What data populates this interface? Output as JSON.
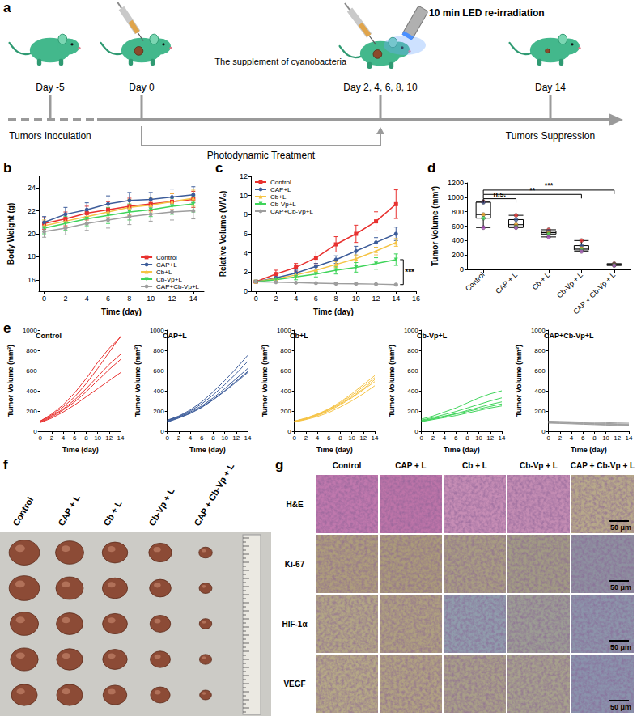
{
  "panel_a": {
    "label": "a",
    "events": [
      {
        "day": "Day -5",
        "caption": "Tumors Inoculation"
      },
      {
        "day": "Day 0"
      },
      {
        "day": "Day 2, 4, 6, 8, 10",
        "note": "The supplement of cyanobacteria",
        "irradiation": "10 min LED re-irradiation"
      },
      {
        "day": "Day 14",
        "caption": "Tumors Suppression"
      }
    ],
    "span": "Photodynamic Treatment"
  },
  "chart_data": [
    {
      "panel": "b",
      "type": "line",
      "x_label": "Time (day)",
      "y_label": "Body Weight (g)",
      "x": [
        0,
        2,
        4,
        6,
        8,
        10,
        12,
        14
      ],
      "xlim": [
        -0.5,
        15
      ],
      "xticks": [
        0,
        2,
        4,
        6,
        8,
        10,
        12,
        14
      ],
      "ylim": [
        15,
        25
      ],
      "yticks": [
        16,
        18,
        20,
        22,
        24
      ],
      "grid": false,
      "legend": "lower right",
      "series": [
        {
          "name": "Control",
          "color": "#e8312f",
          "marker": "square",
          "values": [
            20.9,
            21.3,
            21.8,
            22.1,
            22.4,
            22.6,
            22.8,
            23.0
          ],
          "errors": [
            0.5,
            0.6,
            0.6,
            0.7,
            0.7,
            0.6,
            0.7,
            0.7
          ]
        },
        {
          "name": "CAP+L",
          "color": "#3c5c9a",
          "marker": "circle",
          "values": [
            21.0,
            21.7,
            22.1,
            22.6,
            22.9,
            23.0,
            23.2,
            23.4
          ],
          "errors": [
            0.5,
            0.6,
            0.6,
            0.7,
            0.7,
            0.6,
            0.7,
            0.7
          ]
        },
        {
          "name": "Cb+L",
          "color": "#f5c344",
          "marker": "triangle-up",
          "values": [
            20.7,
            21.1,
            21.5,
            21.9,
            22.3,
            22.5,
            22.8,
            23.1
          ],
          "errors": [
            0.5,
            0.6,
            0.6,
            0.7,
            0.7,
            0.6,
            0.7,
            0.7
          ]
        },
        {
          "name": "Cb-Vp+L",
          "color": "#3fd45a",
          "marker": "triangle-down",
          "values": [
            20.5,
            20.9,
            21.3,
            21.6,
            21.9,
            22.1,
            22.4,
            22.6
          ],
          "errors": [
            0.5,
            0.6,
            0.6,
            0.7,
            0.7,
            0.6,
            0.7,
            0.7
          ]
        },
        {
          "name": "CAP+Cb-Vp+L",
          "color": "#9e9e9e",
          "marker": "circle",
          "values": [
            20.2,
            20.5,
            20.9,
            21.2,
            21.5,
            21.7,
            21.9,
            22.0
          ],
          "errors": [
            0.5,
            0.6,
            0.6,
            0.7,
            0.7,
            0.6,
            0.7,
            0.7
          ]
        }
      ]
    },
    {
      "panel": "c",
      "type": "line",
      "x_label": "Time (day)",
      "y_label": "Relative Volume (V/V₀)",
      "x": [
        0,
        2,
        4,
        6,
        8,
        10,
        12,
        14
      ],
      "xlim": [
        -0.5,
        16
      ],
      "xticks": [
        0,
        2,
        4,
        6,
        8,
        10,
        12,
        14,
        16
      ],
      "ylim": [
        0,
        12
      ],
      "yticks": [
        0,
        2,
        4,
        6,
        8,
        10,
        12
      ],
      "grid": false,
      "legend": "upper left",
      "annotations": [
        {
          "text": "***",
          "x": 14,
          "y_from": 0.7,
          "y_to": 3.3
        }
      ],
      "series": [
        {
          "name": "Control",
          "color": "#e8312f",
          "marker": "square",
          "values": [
            1,
            1.8,
            2.5,
            3.5,
            4.9,
            6.0,
            7.3,
            9.1
          ],
          "errors": [
            0.1,
            0.4,
            0.4,
            0.6,
            0.8,
            0.9,
            1.0,
            1.5
          ]
        },
        {
          "name": "CAP+L",
          "color": "#3c5c9a",
          "marker": "circle",
          "values": [
            1,
            1.4,
            1.9,
            2.6,
            3.3,
            4.2,
            5.1,
            6.0
          ],
          "errors": [
            0.1,
            0.2,
            0.3,
            0.3,
            0.4,
            0.5,
            0.5,
            0.7
          ]
        },
        {
          "name": "Cb+L",
          "color": "#f5c344",
          "marker": "triangle-up",
          "values": [
            1,
            1.3,
            1.7,
            2.2,
            2.8,
            3.4,
            4.2,
            5.1
          ],
          "errors": [
            0.1,
            0.2,
            0.2,
            0.3,
            0.3,
            0.4,
            0.4,
            0.4
          ]
        },
        {
          "name": "Cb-Vp+L",
          "color": "#3fd45a",
          "marker": "triangle-down",
          "values": [
            1,
            1.2,
            1.5,
            1.8,
            2.2,
            2.5,
            2.9,
            3.3
          ],
          "errors": [
            0.1,
            0.2,
            0.3,
            0.3,
            0.4,
            0.5,
            0.6,
            0.6
          ]
        },
        {
          "name": "CAP+Cb-Vp+L",
          "color": "#9e9e9e",
          "marker": "circle",
          "values": [
            1,
            0.95,
            0.9,
            0.85,
            0.8,
            0.78,
            0.75,
            0.7
          ],
          "errors": [
            0.05,
            0.05,
            0.05,
            0.05,
            0.05,
            0.05,
            0.05,
            0.05
          ]
        }
      ]
    },
    {
      "panel": "d",
      "type": "box",
      "y_label": "Tumor Volume (mm³)",
      "categories": [
        "Control",
        "CAP + L",
        "Cb + L",
        "Cb-Vp + L",
        "CAP + Cb-Vp + L"
      ],
      "ylim": [
        0,
        1200
      ],
      "yticks": [
        0,
        200,
        400,
        600,
        800,
        1000,
        1200
      ],
      "grid": false,
      "marker": "circle",
      "boxes": [
        [
          580,
          710,
          760,
          930,
          940
        ],
        [
          580,
          590,
          620,
          690,
          750
        ],
        [
          450,
          490,
          510,
          530,
          550
        ],
        [
          250,
          270,
          290,
          330,
          400
        ],
        [
          55,
          60,
          65,
          70,
          80
        ]
      ],
      "points": [
        [
          940,
          930,
          760,
          710,
          580
        ],
        [
          750,
          690,
          620,
          590,
          580
        ],
        [
          550,
          530,
          510,
          490,
          450
        ],
        [
          400,
          330,
          290,
          270,
          250
        ],
        [
          80,
          70,
          65,
          60,
          55
        ]
      ],
      "point_colors": [
        "#e8312f",
        "#3c5c9a",
        "#f5a623",
        "#3fd45a",
        "#b04fc0"
      ],
      "brackets": [
        {
          "from": "Control",
          "to": "CAP + L",
          "y": 980,
          "label": "n.s."
        },
        {
          "from": "Control",
          "to": "Cb-Vp + L",
          "y": 1040,
          "label": "**"
        },
        {
          "from": "Control",
          "to": "CAP + Cb-Vp + L",
          "y": 1100,
          "label": "***"
        }
      ]
    },
    {
      "panel": "e",
      "type": "line",
      "title": "Control",
      "color": "#e8312f",
      "marker": "none",
      "x_label": "Time (day)",
      "y_label": "Tumor Volume (mm³)",
      "x": [
        0,
        2,
        4,
        6,
        8,
        10,
        12,
        14
      ],
      "xlim": [
        0,
        14
      ],
      "xticks": [
        0,
        2,
        4,
        6,
        8,
        10,
        12,
        14
      ],
      "ylim": [
        0,
        1000
      ],
      "yticks": [
        0,
        200,
        400,
        600,
        800,
        1000
      ],
      "grid": false,
      "series": [
        {
          "values": [
            100,
            160,
            240,
            340,
            470,
            620,
            780,
            940
          ]
        },
        {
          "values": [
            100,
            170,
            260,
            380,
            520,
            680,
            820,
            930
          ]
        },
        {
          "values": [
            95,
            150,
            220,
            310,
            420,
            540,
            660,
            760
          ]
        },
        {
          "values": [
            90,
            140,
            210,
            290,
            390,
            500,
            610,
            710
          ]
        },
        {
          "values": [
            85,
            130,
            190,
            260,
            340,
            420,
            500,
            580
          ]
        }
      ]
    },
    {
      "type": "line",
      "title": "CAP+L",
      "color": "#3c5c9a",
      "marker": "none",
      "x_label": "Time (day)",
      "y_label": "Tumor Volume (mm³)",
      "x": [
        0,
        2,
        4,
        6,
        8,
        10,
        12,
        14
      ],
      "xlim": [
        0,
        14
      ],
      "xticks": [
        0,
        2,
        4,
        6,
        8,
        10,
        12,
        14
      ],
      "ylim": [
        0,
        1000
      ],
      "yticks": [
        0,
        200,
        400,
        600,
        800,
        1000
      ],
      "grid": false,
      "series": [
        {
          "values": [
            110,
            150,
            210,
            290,
            390,
            500,
            620,
            750
          ]
        },
        {
          "values": [
            105,
            145,
            200,
            270,
            360,
            460,
            570,
            690
          ]
        },
        {
          "values": [
            100,
            140,
            190,
            250,
            330,
            420,
            520,
            620
          ]
        },
        {
          "values": [
            95,
            135,
            180,
            240,
            315,
            400,
            495,
            590
          ]
        },
        {
          "values": [
            90,
            130,
            175,
            235,
            310,
            395,
            485,
            580
          ]
        }
      ]
    },
    {
      "type": "line",
      "title": "Cb+L",
      "color": "#f5c344",
      "marker": "none",
      "x_label": "Time (day)",
      "y_label": "Tumor Volume (mm³)",
      "x": [
        0,
        2,
        4,
        6,
        8,
        10,
        12,
        14
      ],
      "xlim": [
        0,
        14
      ],
      "xticks": [
        0,
        2,
        4,
        6,
        8,
        10,
        12,
        14
      ],
      "ylim": [
        0,
        1000
      ],
      "yticks": [
        0,
        200,
        400,
        600,
        800,
        1000
      ],
      "grid": false,
      "series": [
        {
          "values": [
            100,
            130,
            170,
            220,
            290,
            370,
            460,
            550
          ]
        },
        {
          "values": [
            100,
            125,
            165,
            215,
            280,
            355,
            440,
            530
          ]
        },
        {
          "values": [
            95,
            120,
            160,
            210,
            270,
            340,
            420,
            510
          ]
        },
        {
          "values": [
            95,
            120,
            155,
            200,
            260,
            330,
            410,
            490
          ]
        },
        {
          "values": [
            90,
            115,
            145,
            185,
            240,
            300,
            370,
            450
          ]
        }
      ]
    },
    {
      "type": "line",
      "title": "Cb-Vp+L",
      "color": "#3fd45a",
      "marker": "none",
      "x_label": "Time (day)",
      "y_label": "Tumor Volume (mm³)",
      "x": [
        0,
        2,
        4,
        6,
        8,
        10,
        12,
        14
      ],
      "xlim": [
        0,
        14
      ],
      "xticks": [
        0,
        2,
        4,
        6,
        8,
        10,
        12,
        14
      ],
      "ylim": [
        0,
        1000
      ],
      "yticks": [
        0,
        200,
        400,
        600,
        800,
        1000
      ],
      "grid": false,
      "series": [
        {
          "values": [
            120,
            150,
            190,
            230,
            280,
            330,
            370,
            400
          ]
        },
        {
          "values": [
            110,
            135,
            165,
            195,
            230,
            265,
            300,
            330
          ]
        },
        {
          "values": [
            105,
            125,
            150,
            175,
            205,
            235,
            265,
            290
          ]
        },
        {
          "values": [
            100,
            120,
            145,
            170,
            195,
            220,
            245,
            270
          ]
        },
        {
          "values": [
            95,
            115,
            135,
            155,
            180,
            205,
            230,
            250
          ]
        }
      ]
    },
    {
      "type": "line",
      "title": "CAP+Cb-Vp+L",
      "color": "#9e9e9e",
      "marker": "none",
      "x_label": "Time (day)",
      "y_label": "Tumor Volume (mm³)",
      "x": [
        0,
        2,
        4,
        6,
        8,
        10,
        12,
        14
      ],
      "xlim": [
        0,
        14
      ],
      "xticks": [
        0,
        2,
        4,
        6,
        8,
        10,
        12,
        14
      ],
      "ylim": [
        0,
        1000
      ],
      "yticks": [
        0,
        200,
        400,
        600,
        800,
        1000
      ],
      "grid": false,
      "series": [
        {
          "values": [
            100,
            97,
            94,
            91,
            88,
            85,
            82,
            80
          ]
        },
        {
          "values": [
            95,
            92,
            88,
            84,
            80,
            77,
            73,
            70
          ]
        },
        {
          "values": [
            90,
            87,
            83,
            79,
            75,
            71,
            68,
            65
          ]
        },
        {
          "values": [
            85,
            82,
            78,
            74,
            70,
            66,
            63,
            60
          ]
        },
        {
          "values": [
            80,
            77,
            73,
            69,
            65,
            61,
            58,
            55
          ]
        }
      ]
    }
  ],
  "panel_f": {
    "label": "f",
    "groups": [
      "Control",
      "CAP + L",
      "Cb + L",
      "Cb-Vp + L",
      "CAP + Cb-Vp + L"
    ]
  },
  "panel_g": {
    "label": "g",
    "groups": [
      "Control",
      "CAP + L",
      "Cb + L",
      "Cb-Vp + L",
      "CAP + Cb-Vp + L"
    ],
    "stains": [
      "H&E",
      "Ki-67",
      "HIF-1α",
      "VEGF"
    ],
    "scale_bar": "50 μm"
  }
}
